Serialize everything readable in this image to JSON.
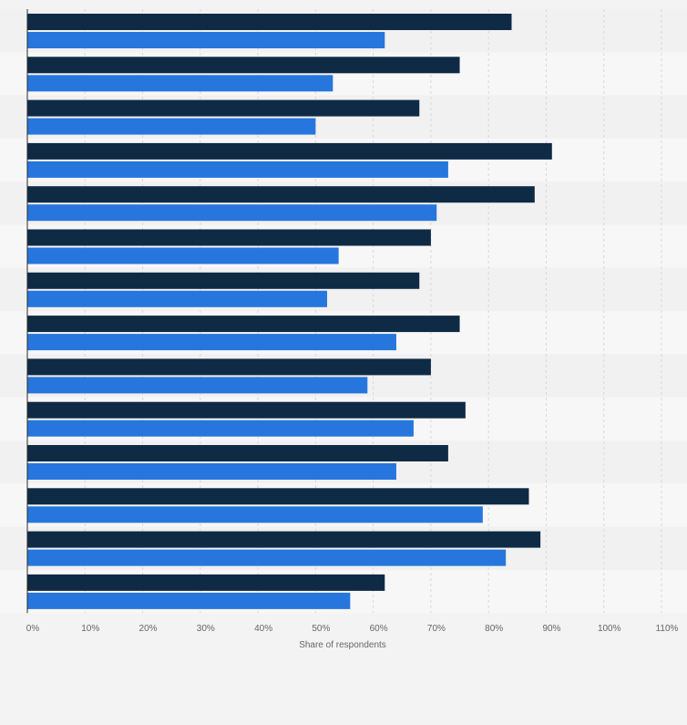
{
  "chart_data": {
    "type": "bar",
    "orientation": "horizontal",
    "title": "",
    "xlabel": "Share of respondents",
    "ylabel": "",
    "xlim": [
      0,
      110
    ],
    "ticks": [
      0,
      10,
      20,
      30,
      40,
      50,
      60,
      70,
      80,
      90,
      100,
      110
    ],
    "tick_labels": [
      "0%",
      "10%",
      "20%",
      "30%",
      "40%",
      "50%",
      "60%",
      "70%",
      "80%",
      "90%",
      "100%",
      "110%"
    ],
    "grid": true,
    "legend": "none",
    "categories": [
      "",
      "",
      "",
      "",
      "",
      "",
      "",
      "",
      "",
      "",
      "",
      "",
      "",
      ""
    ],
    "series": [
      {
        "color": "#0f2a45",
        "values": [
          84,
          75,
          68,
          91,
          88,
          70,
          68,
          75,
          70,
          76,
          73,
          87,
          89,
          62
        ]
      },
      {
        "color": "#2776dd",
        "values": [
          62,
          53,
          50,
          73,
          71,
          54,
          52,
          64,
          59,
          67,
          64,
          79,
          83,
          56
        ]
      }
    ]
  },
  "colors": {
    "background": "#f3f3f4",
    "band_light": "#f7f7f8",
    "band_dark": "#f1f1f2",
    "grid": "#d8d8dc",
    "axis": "#2b2b2b",
    "tick_text": "#666666"
  }
}
